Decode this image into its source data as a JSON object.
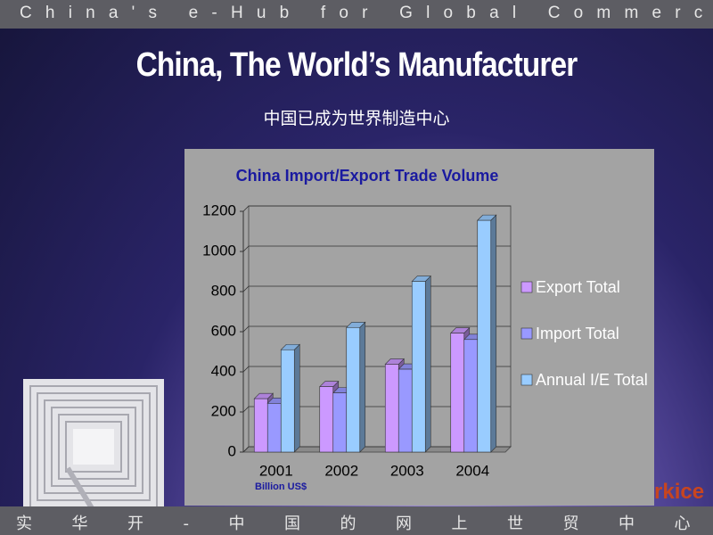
{
  "header": {
    "banner": "China's e-Hub for Global Commerce",
    "title": "China, The World’s Manufacturer",
    "subtitle": "中国已成为世界制造中心"
  },
  "footer": {
    "banner": "实华开-中国的网上世贸中心",
    "logo": "rkice"
  },
  "chart_data": {
    "type": "bar",
    "title": "China Import/Export  Trade Volume",
    "x_label": "Billion  US$",
    "categories": [
      "2001",
      "2002",
      "2003",
      "2004"
    ],
    "series": [
      {
        "name": "Export Total",
        "color": "#cc99ff",
        "values": [
          266,
          326,
          438,
          593
        ]
      },
      {
        "name": "Import Total",
        "color": "#9999ff",
        "values": [
          243,
          295,
          413,
          561
        ]
      },
      {
        "name": "Annual I/E Total",
        "color": "#99ccff",
        "values": [
          510,
          621,
          851,
          1155
        ]
      }
    ],
    "ylim": [
      0,
      1200
    ],
    "yticks": [
      0,
      200,
      400,
      600,
      800,
      1000,
      1200
    ],
    "grid": true,
    "legend": "right"
  }
}
